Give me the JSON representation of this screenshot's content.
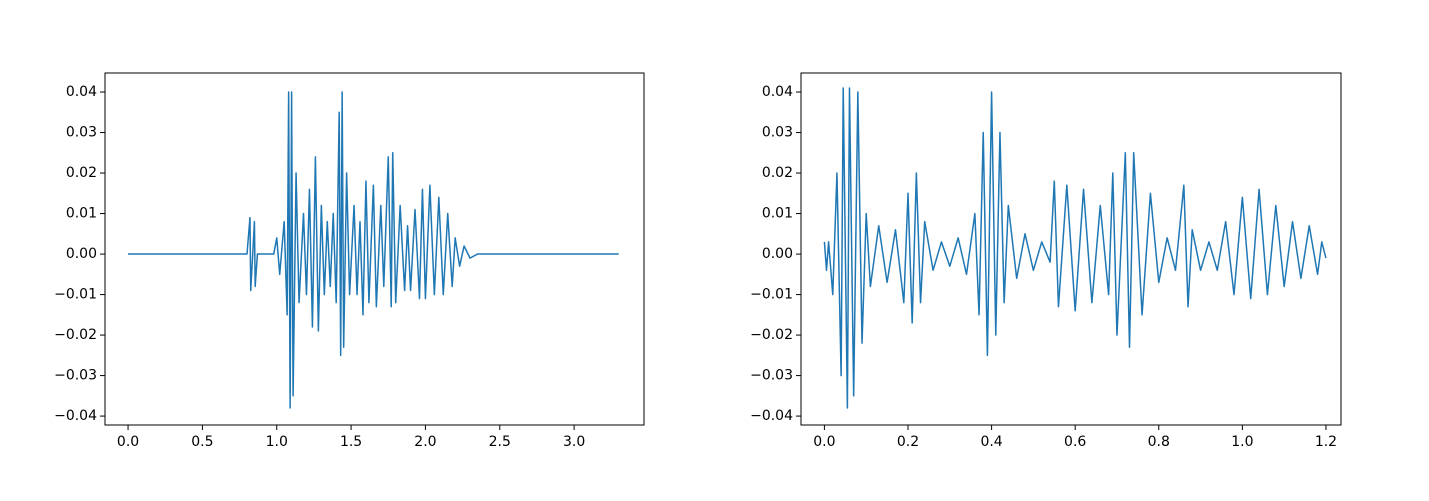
{
  "chart_data": [
    {
      "type": "line",
      "color": "#1f77b4",
      "xlim": [
        -0.155,
        3.47
      ],
      "ylim": [
        -0.0422,
        0.0447
      ],
      "xticks": [
        {
          "value": 0,
          "label": "0.0"
        },
        0.5,
        {
          "value": 1,
          "label": "1.0"
        },
        1.5,
        {
          "value": 2,
          "label": "2.0"
        },
        2.5,
        {
          "value": 3,
          "label": "3.0"
        }
      ],
      "yticks": [
        {
          "value": -0.04,
          "label": "−0.04"
        },
        {
          "value": -0.03,
          "label": "−0.03"
        },
        {
          "value": -0.02,
          "label": "−0.02"
        },
        {
          "value": -0.01,
          "label": "−0.01"
        },
        {
          "value": 0,
          "label": "0.00"
        },
        0.01,
        0.02,
        0.03,
        0.04
      ],
      "x": [
        0,
        0.8,
        0.82,
        0.825,
        0.84,
        0.85,
        0.855,
        0.87,
        0.98,
        1.0,
        1.02,
        1.05,
        1.07,
        1.08,
        1.09,
        1.1,
        1.11,
        1.13,
        1.15,
        1.18,
        1.2,
        1.22,
        1.24,
        1.26,
        1.28,
        1.3,
        1.32,
        1.34,
        1.36,
        1.38,
        1.4,
        1.42,
        1.43,
        1.44,
        1.45,
        1.47,
        1.49,
        1.52,
        1.54,
        1.56,
        1.58,
        1.6,
        1.62,
        1.65,
        1.67,
        1.7,
        1.72,
        1.75,
        1.77,
        1.78,
        1.8,
        1.83,
        1.86,
        1.88,
        1.9,
        1.93,
        1.96,
        1.98,
        2.0,
        2.03,
        2.06,
        2.09,
        2.12,
        2.15,
        2.18,
        2.2,
        2.23,
        2.26,
        2.3,
        2.35,
        3.3
      ],
      "values": [
        0,
        0,
        0.009,
        -0.009,
        0.001,
        0.008,
        -0.008,
        0,
        0,
        0.004,
        -0.005,
        0.008,
        -0.015,
        0.04,
        -0.038,
        0.04,
        -0.035,
        0.02,
        -0.012,
        0.01,
        -0.01,
        0.016,
        -0.018,
        0.024,
        -0.019,
        0.012,
        -0.01,
        0.008,
        -0.008,
        0.01,
        -0.012,
        0.035,
        -0.025,
        0.04,
        -0.023,
        0.02,
        -0.01,
        0.012,
        -0.01,
        0.008,
        -0.015,
        0.018,
        -0.012,
        0.017,
        -0.013,
        0.012,
        -0.008,
        0.024,
        -0.013,
        0.025,
        -0.012,
        0.012,
        -0.009,
        0.007,
        -0.009,
        0.011,
        -0.011,
        0.016,
        -0.011,
        0.017,
        -0.01,
        0.014,
        -0.01,
        0.01,
        -0.008,
        0.004,
        -0.003,
        0.002,
        -0.001,
        0,
        0
      ]
    },
    {
      "type": "line",
      "color": "#1f77b4",
      "xlim": [
        -0.056,
        1.236
      ],
      "ylim": [
        -0.0422,
        0.0447
      ],
      "xticks": [
        {
          "value": 0,
          "label": "0.0"
        },
        0.2,
        0.4,
        0.6,
        0.8,
        {
          "value": 1,
          "label": "1.0"
        },
        1.2
      ],
      "yticks": [
        {
          "value": -0.04,
          "label": "−0.04"
        },
        {
          "value": -0.03,
          "label": "−0.03"
        },
        {
          "value": -0.02,
          "label": "−0.02"
        },
        {
          "value": -0.01,
          "label": "−0.01"
        },
        {
          "value": 0,
          "label": "0.00"
        },
        0.01,
        0.02,
        0.03,
        0.04
      ],
      "x": [
        0,
        0.005,
        0.01,
        0.02,
        0.03,
        0.04,
        0.045,
        0.055,
        0.06,
        0.07,
        0.08,
        0.09,
        0.1,
        0.11,
        0.13,
        0.15,
        0.17,
        0.19,
        0.2,
        0.21,
        0.22,
        0.23,
        0.24,
        0.26,
        0.28,
        0.3,
        0.32,
        0.34,
        0.36,
        0.37,
        0.38,
        0.39,
        0.4,
        0.41,
        0.42,
        0.43,
        0.44,
        0.46,
        0.48,
        0.5,
        0.52,
        0.54,
        0.55,
        0.56,
        0.58,
        0.6,
        0.62,
        0.64,
        0.66,
        0.68,
        0.69,
        0.7,
        0.72,
        0.73,
        0.74,
        0.76,
        0.78,
        0.8,
        0.82,
        0.84,
        0.86,
        0.87,
        0.88,
        0.9,
        0.92,
        0.94,
        0.96,
        0.98,
        1.0,
        1.02,
        1.04,
        1.06,
        1.08,
        1.1,
        1.12,
        1.14,
        1.16,
        1.18,
        1.19,
        1.2
      ],
      "values": [
        0.003,
        -0.004,
        0.003,
        -0.01,
        0.02,
        -0.03,
        0.041,
        -0.038,
        0.041,
        -0.035,
        0.04,
        -0.022,
        0.01,
        -0.008,
        0.007,
        -0.007,
        0.006,
        -0.012,
        0.015,
        -0.017,
        0.02,
        -0.012,
        0.008,
        -0.004,
        0.003,
        -0.003,
        0.004,
        -0.005,
        0.01,
        -0.015,
        0.03,
        -0.025,
        0.04,
        -0.02,
        0.03,
        -0.012,
        0.012,
        -0.006,
        0.005,
        -0.004,
        0.003,
        -0.002,
        0.018,
        -0.013,
        0.017,
        -0.014,
        0.016,
        -0.012,
        0.012,
        -0.01,
        0.02,
        -0.02,
        0.025,
        -0.023,
        0.025,
        -0.015,
        0.015,
        -0.007,
        0.004,
        -0.004,
        0.017,
        -0.013,
        0.006,
        -0.004,
        0.003,
        -0.004,
        0.008,
        -0.01,
        0.014,
        -0.011,
        0.016,
        -0.01,
        0.012,
        -0.008,
        0.008,
        -0.006,
        0.007,
        -0.005,
        0.003,
        -0.001
      ]
    }
  ]
}
